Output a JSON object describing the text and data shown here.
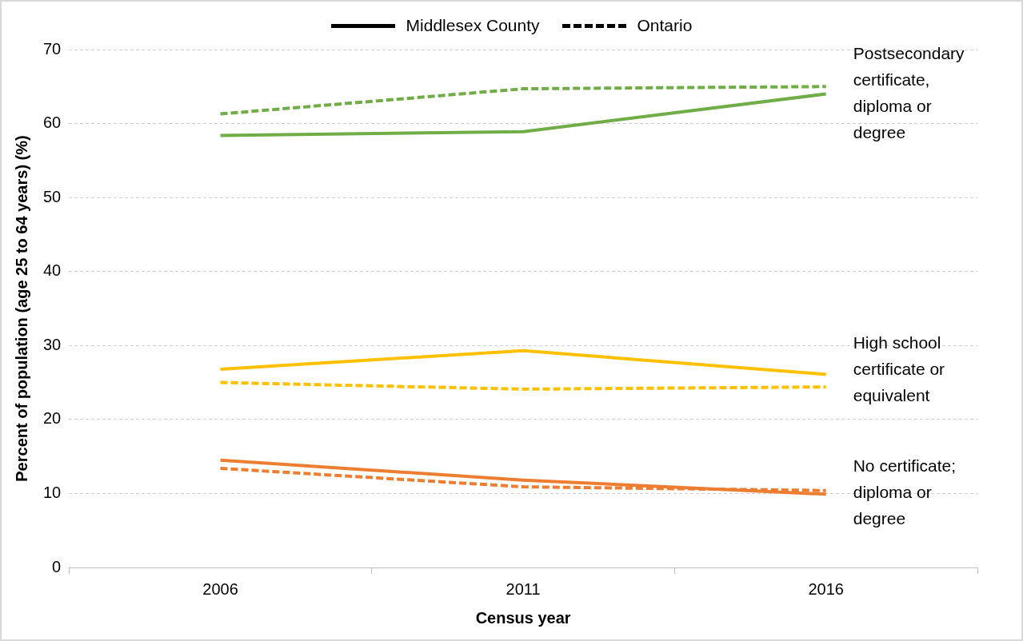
{
  "chart_data": {
    "type": "line",
    "xlabel": "Census year",
    "ylabel": "Percent of population (age 25 to 64 years) (%)",
    "categories": [
      "2006",
      "2011",
      "2016"
    ],
    "series": [
      {
        "color": "#70ad47",
        "line_style": "solid",
        "values": [
          58.4,
          58.9,
          64.0
        ]
      },
      {
        "color": "#70ad47",
        "line_style": "dashed",
        "values": [
          61.3,
          64.7,
          65.0
        ]
      },
      {
        "color": "#ffc000",
        "line_style": "solid",
        "values": [
          26.8,
          29.3,
          26.1
        ]
      },
      {
        "color": "#ffc000",
        "line_style": "dashed",
        "values": [
          25.0,
          24.1,
          24.4
        ]
      },
      {
        "color": "#ed7d31",
        "line_style": "solid",
        "values": [
          14.5,
          11.8,
          9.9
        ]
      },
      {
        "color": "#ed7d31",
        "line_style": "dashed",
        "values": [
          13.4,
          10.9,
          10.4
        ]
      }
    ],
    "ylim": [
      0,
      70
    ],
    "yticks": [
      0,
      10,
      20,
      30,
      40,
      50,
      60,
      70
    ],
    "grid": "y",
    "marker": "none",
    "annotations": [
      "Middlesex County",
      "Ontario",
      {
        "text": "Postsecondary certificate, diploma or degree",
        "x": "2016",
        "y": 64
      },
      {
        "text": "High school certificate or equivalent",
        "x": "2016",
        "y": 26.7
      },
      {
        "text": "No certificate; diploma or degree",
        "x": "2016",
        "y": 10
      }
    ]
  }
}
